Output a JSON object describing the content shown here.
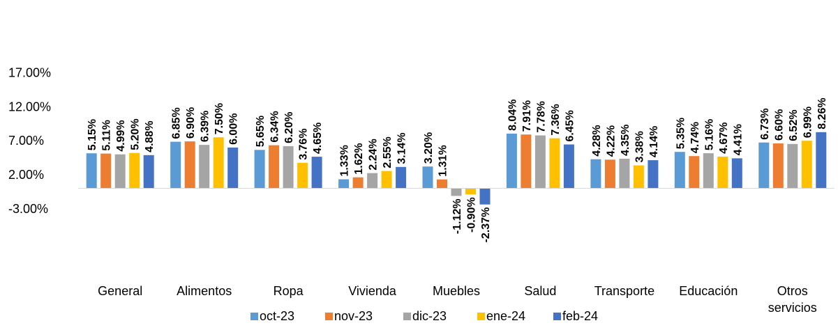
{
  "chart_data": {
    "type": "bar",
    "categories": [
      [
        "General"
      ],
      [
        "Alimentos"
      ],
      [
        "Ropa"
      ],
      [
        "Vivienda"
      ],
      [
        "Muebles"
      ],
      [
        "Salud"
      ],
      [
        "Transporte"
      ],
      [
        "Educación"
      ],
      [
        "Otros",
        "servicios"
      ]
    ],
    "series": [
      {
        "name": "oct-23",
        "color": "#5B9BD5",
        "values": [
          5.15,
          6.85,
          5.65,
          1.33,
          3.2,
          8.04,
          4.28,
          5.35,
          6.73
        ],
        "labels": [
          "5.15%",
          "6.85%",
          "5.65%",
          "1.33%",
          "3.20%",
          "8.04%",
          "4.28%",
          "5.35%",
          "6.73%"
        ]
      },
      {
        "name": "nov-23",
        "color": "#ED7D31",
        "values": [
          5.11,
          6.9,
          6.34,
          1.62,
          1.31,
          7.91,
          4.22,
          4.74,
          6.6
        ],
        "labels": [
          "5.11%",
          "6.90%",
          "6.34%",
          "1.62%",
          "1.31%",
          "7.91%",
          "4.22%",
          "4.74%",
          "6.60%"
        ]
      },
      {
        "name": "dic-23",
        "color": "#A5A5A5",
        "values": [
          4.99,
          6.39,
          6.2,
          2.24,
          -1.12,
          7.78,
          4.35,
          5.16,
          6.52
        ],
        "labels": [
          "4.99%",
          "6.39%",
          "6.20%",
          "2.24%",
          "-1.12%",
          "7.78%",
          "4.35%",
          "5.16%",
          "6.52%"
        ]
      },
      {
        "name": "ene-24",
        "color": "#FFC000",
        "values": [
          5.2,
          7.5,
          3.76,
          2.55,
          -0.9,
          7.36,
          3.38,
          4.67,
          6.99
        ],
        "labels": [
          "5.20%",
          "7.50%",
          "3.76%",
          "2.55%",
          "-0.90%",
          "7.36%",
          "3.38%",
          "4.67%",
          "6.99%"
        ]
      },
      {
        "name": "feb-24",
        "color": "#4472C4",
        "values": [
          4.88,
          6.0,
          4.65,
          3.14,
          -2.37,
          6.45,
          4.14,
          4.41,
          8.26
        ],
        "labels": [
          "4.88%",
          "6.00%",
          "4.65%",
          "3.14%",
          "-2.37%",
          "6.45%",
          "4.14%",
          "4.41%",
          "8.26%"
        ]
      }
    ],
    "y_ticks": [
      {
        "value": 17,
        "label": "17.00%"
      },
      {
        "value": 12,
        "label": "12.00%"
      },
      {
        "value": 7,
        "label": "7.00%"
      },
      {
        "value": 2,
        "label": "2.00%"
      },
      {
        "value": -3,
        "label": "-3.00%"
      }
    ],
    "ylim": [
      -8,
      17
    ],
    "grid": false,
    "legend_position": "bottom",
    "axis_color": "#D9D9D9",
    "title": "",
    "xlabel": "",
    "ylabel": ""
  }
}
